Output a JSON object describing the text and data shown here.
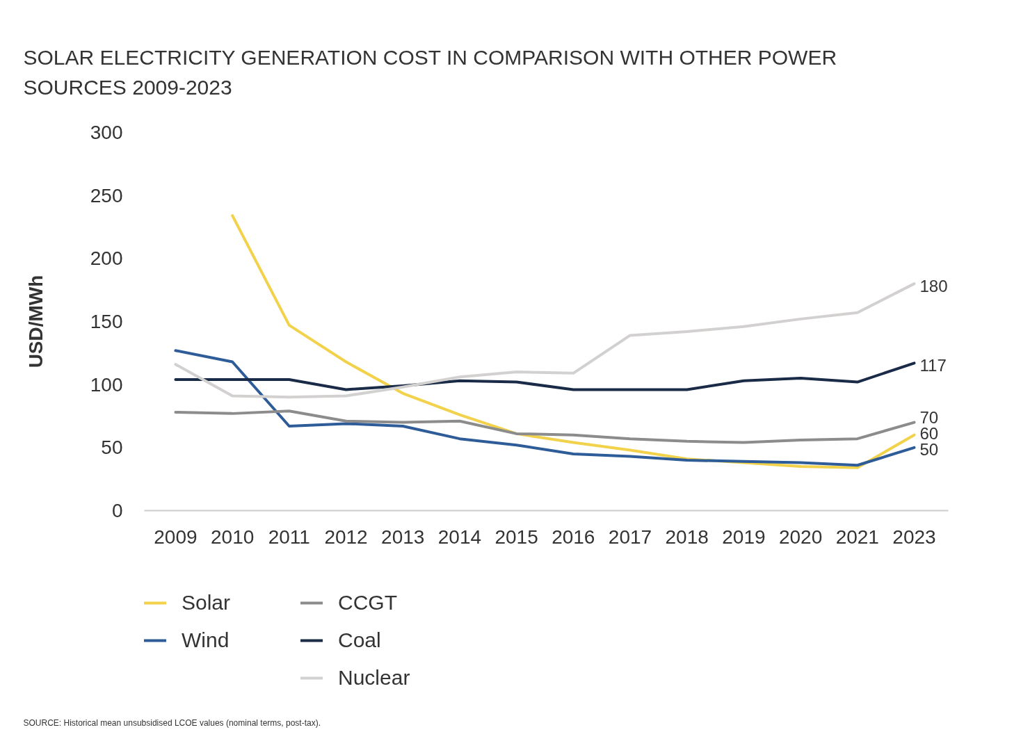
{
  "chart_data": {
    "type": "line",
    "title": "SOLAR ELECTRICITY GENERATION COST IN COMPARISON WITH OTHER POWER SOURCES 2009-2023",
    "ylabel": "USD/MWh",
    "categories": [
      "2009",
      "2010",
      "2011",
      "2012",
      "2013",
      "2014",
      "2015",
      "2016",
      "2017",
      "2018",
      "2019",
      "2020",
      "2021",
      "2023"
    ],
    "series": [
      {
        "name": "Solar",
        "color": "#f1d24a",
        "values": [
          null,
          234,
          147,
          118,
          93,
          76,
          61,
          54,
          48,
          41,
          38,
          35,
          34,
          60
        ],
        "value_labels": [
          null,
          null,
          null,
          null,
          null,
          null,
          null,
          null,
          null,
          null,
          null,
          null,
          null,
          "60"
        ]
      },
      {
        "name": "Wind",
        "color": "#2e5c99",
        "values": [
          127,
          118,
          67,
          69,
          67,
          57,
          52,
          45,
          43,
          40,
          39,
          38,
          36,
          50
        ],
        "value_labels": [
          null,
          null,
          null,
          null,
          null,
          null,
          null,
          null,
          null,
          null,
          null,
          null,
          null,
          "50"
        ]
      },
      {
        "name": "CCGT",
        "color": "#8c8c8c",
        "values": [
          78,
          77,
          79,
          71,
          70,
          71,
          61,
          60,
          57,
          55,
          54,
          56,
          57,
          70
        ],
        "value_labels": [
          null,
          null,
          null,
          null,
          null,
          null,
          null,
          null,
          null,
          null,
          null,
          null,
          null,
          "70"
        ]
      },
      {
        "name": "Coal",
        "color": "#1a2b47",
        "values": [
          104,
          104,
          104,
          96,
          99,
          103,
          102,
          96,
          96,
          96,
          103,
          105,
          102,
          117
        ],
        "value_labels": [
          null,
          null,
          null,
          null,
          null,
          null,
          null,
          null,
          null,
          null,
          null,
          null,
          null,
          "117"
        ]
      },
      {
        "name": "Nuclear",
        "color": "#d3d0d0",
        "values": [
          116,
          91,
          90,
          91,
          98,
          106,
          110,
          109,
          139,
          142,
          146,
          152,
          157,
          180
        ],
        "value_labels": [
          null,
          null,
          null,
          null,
          null,
          null,
          null,
          null,
          null,
          null,
          null,
          null,
          null,
          "180"
        ]
      }
    ],
    "ylim": [
      0,
      300
    ],
    "yticks": [
      0,
      50,
      100,
      150,
      200,
      250,
      300
    ],
    "legend": "bottom",
    "line_style": "solid",
    "annotations": [
      "SOURCE: Historical mean unsubsidised LCOE values (nominal terms, post-tax)."
    ]
  }
}
